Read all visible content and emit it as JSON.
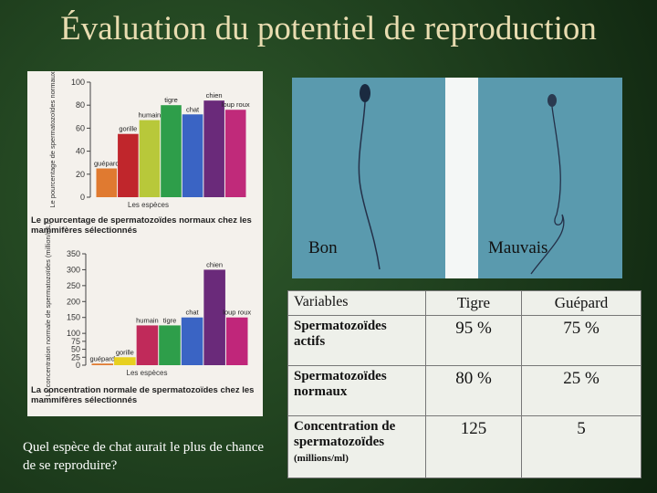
{
  "title": "Évaluation du potentiel de reproduction",
  "chart_data": [
    {
      "type": "bar",
      "ylabel": "Le pourcentage de spermatozoïdes normaux",
      "xlabel": "Les espèces",
      "caption": "Le pourcentage de spermatozoïdes normaux chez les mammifères sélectionnés",
      "categories": [
        "guépard",
        "gorille",
        "humain",
        "tigre",
        "chat",
        "chien",
        "loup roux"
      ],
      "values": [
        25,
        55,
        67,
        80,
        72,
        84,
        76
      ],
      "colors": [
        "#e07a30",
        "#c0262c",
        "#b8c83a",
        "#2e9e4a",
        "#3a64c4",
        "#6a2a7a",
        "#c02a7a"
      ],
      "ylim": [
        0,
        100
      ],
      "yticks": [
        0,
        20,
        40,
        60,
        80,
        100
      ]
    },
    {
      "type": "bar",
      "ylabel": "La concentration normale de spermatozoïdes (million/mL)",
      "xlabel": "Les espèces",
      "caption": "La concentration normale de spermatozoïdes chez les mammifères sélectionnés",
      "categories": [
        "guépard",
        "gorille",
        "humain",
        "tigre",
        "chat",
        "chien",
        "loup roux"
      ],
      "values": [
        5,
        25,
        125,
        125,
        150,
        300,
        150
      ],
      "colors": [
        "#e07a30",
        "#e8d020",
        "#c02a5a",
        "#2e9e4a",
        "#3a64c4",
        "#6a2a7a",
        "#c0267a"
      ],
      "ylim": [
        0,
        350
      ],
      "yticks": [
        0,
        25,
        50,
        75,
        100,
        150,
        200,
        250,
        300,
        350
      ]
    }
  ],
  "question": "Quel espèce de chat aurait le plus de chance de se reproduire?",
  "photo": {
    "labels": [
      "Bon",
      "Mauvais"
    ]
  },
  "table": {
    "header": [
      "Variables",
      "Tigre",
      "Guépard"
    ],
    "rows": [
      [
        "Spermatozoïdes actifs",
        "95 %",
        "75 %"
      ],
      [
        "Spermatozoïdes normaux",
        "80 %",
        "25 %"
      ],
      [
        "Concentration de spermatozoïdes",
        "125",
        "5"
      ]
    ],
    "row_note": "(millions/ml)"
  }
}
